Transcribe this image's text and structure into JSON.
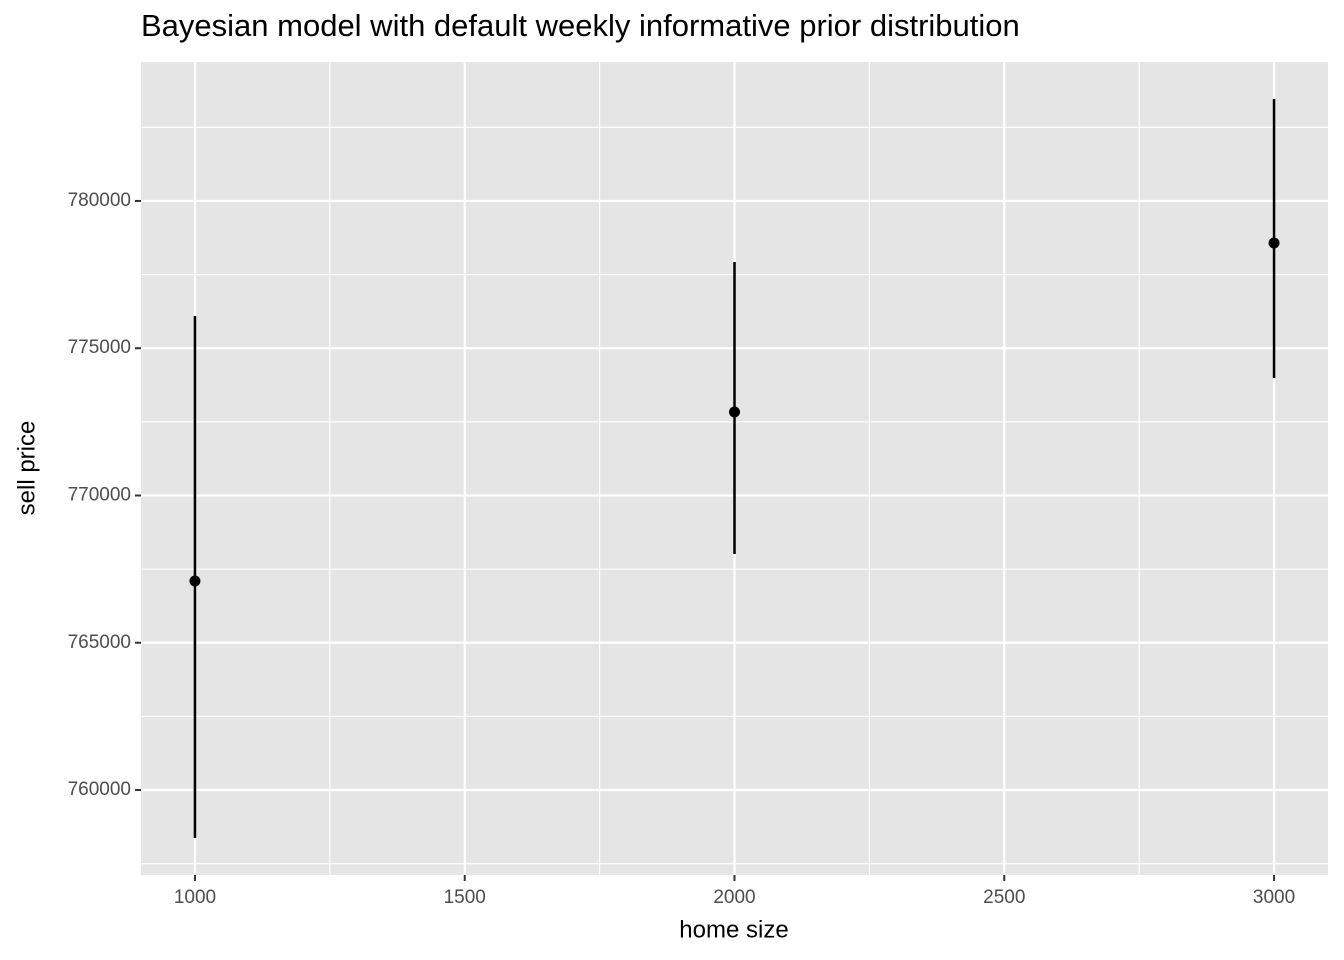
{
  "chart_data": {
    "type": "pointrange",
    "title": "Bayesian model with default weekly informative prior distribution",
    "x_label": "home size",
    "y_label": "sell price",
    "x": [
      1000,
      2000,
      3000
    ],
    "values": [
      767097,
      772835,
      778574
    ],
    "lower": [
      758370,
      768014,
      773990
    ],
    "upper": [
      776095,
      777929,
      783463
    ],
    "color": "#000000",
    "xlim": [
      900,
      3100
    ],
    "xticks": [
      1000,
      1500,
      2000,
      2500,
      3000
    ],
    "x_minor_ticks": [
      1250,
      1750,
      2250,
      2750
    ],
    "ylim": [
      757115,
      784718
    ],
    "yticks": [
      760000,
      765000,
      770000,
      775000,
      780000
    ],
    "y_minor_ticks": [
      757500,
      762500,
      767500,
      772500,
      777500,
      782500
    ],
    "grid": true
  }
}
